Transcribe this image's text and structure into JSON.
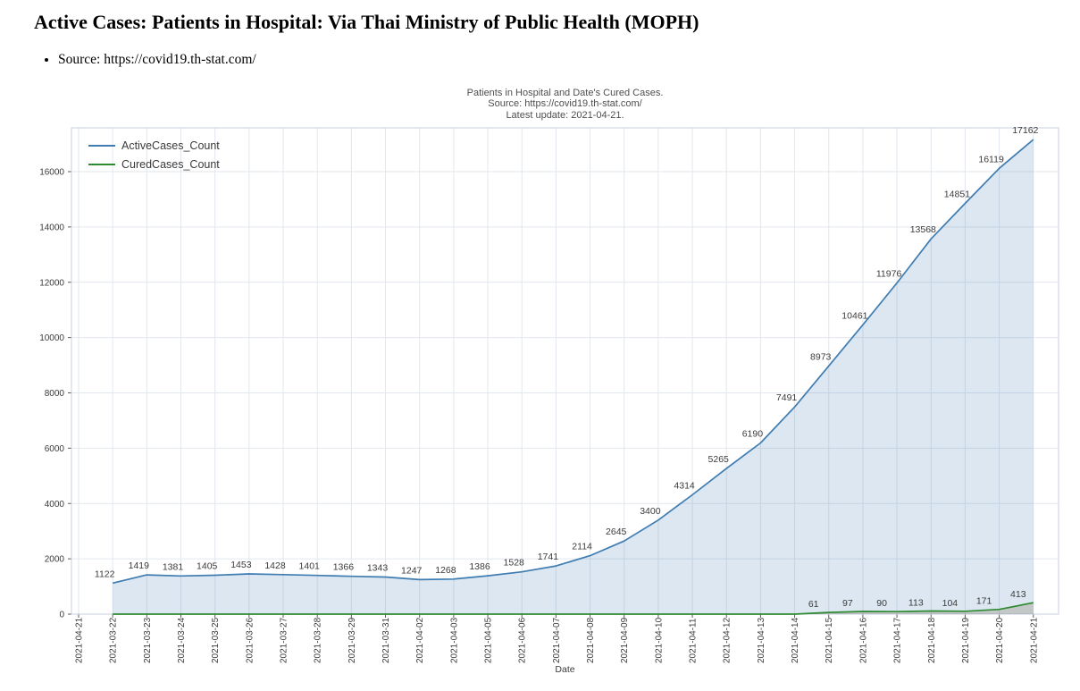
{
  "page": {
    "title": "Active Cases: Patients in Hospital: Via Thai Ministry of Public Health (MOPH)",
    "source_bullet": "Source: https://covid19.th-stat.com/"
  },
  "chart": {
    "title_lines": [
      "Patients in Hospital and Date's Cured Cases.",
      "Source: https://covid19.th-stat.com/",
      "Latest update: 2021-04-21."
    ]
  },
  "chart_data": {
    "type": "line",
    "title": "Patients in Hospital and Date's Cured Cases. Source: https://covid19.th-stat.com/ Latest update: 2021-04-21.",
    "xlabel": "Date",
    "ylabel": "",
    "ylim": [
      0,
      17600
    ],
    "yticks": [
      0,
      2000,
      4000,
      6000,
      8000,
      10000,
      12000,
      14000,
      16000
    ],
    "grid": true,
    "legend_position": "top-left",
    "categories": [
      "2021-04-21",
      "2021-03-22",
      "2021-03-23",
      "2021-03-24",
      "2021-03-25",
      "2021-03-26",
      "2021-03-27",
      "2021-03-28",
      "2021-03-29",
      "2021-03-31",
      "2021-04-02",
      "2021-04-03",
      "2021-04-05",
      "2021-04-06",
      "2021-04-07",
      "2021-04-08",
      "2021-04-09",
      "2021-04-10",
      "2021-04-11",
      "2021-04-12",
      "2021-04-13",
      "2021-04-14",
      "2021-04-15",
      "2021-04-16",
      "2021-04-17",
      "2021-04-18",
      "2021-04-19",
      "2021-04-20",
      "2021-04-21"
    ],
    "series": [
      {
        "name": "ActiveCases_Count",
        "color": "#3e7cb1",
        "fill": "rgba(62,124,177,0.18)",
        "start_index": 1,
        "label_dx": -9,
        "label_dy": -7,
        "label_nonzero_only": false,
        "values": [
          1122,
          1419,
          1381,
          1405,
          1453,
          1428,
          1401,
          1366,
          1343,
          1247,
          1268,
          1386,
          1528,
          1741,
          2114,
          2645,
          3400,
          4314,
          5265,
          6190,
          7491,
          8973,
          10461,
          11976,
          13568,
          14851,
          16119,
          17162
        ]
      },
      {
        "name": "CuredCases_Count",
        "color": "#2e8b31",
        "fill": "rgba(150,140,120,0.35)",
        "start_index": 1,
        "label_dx": -17,
        "label_dy": -6,
        "label_nonzero_only": true,
        "values": [
          0,
          0,
          0,
          0,
          0,
          0,
          0,
          0,
          0,
          0,
          0,
          0,
          0,
          0,
          0,
          0,
          0,
          0,
          0,
          0,
          0,
          61,
          97,
          90,
          113,
          104,
          171,
          413
        ]
      }
    ],
    "style": {
      "grid_color": "#e2e7ee",
      "spine_color": "#c9d2dc",
      "tick_color": "#5a5a5a",
      "text_color": "#3a3a3a"
    }
  }
}
